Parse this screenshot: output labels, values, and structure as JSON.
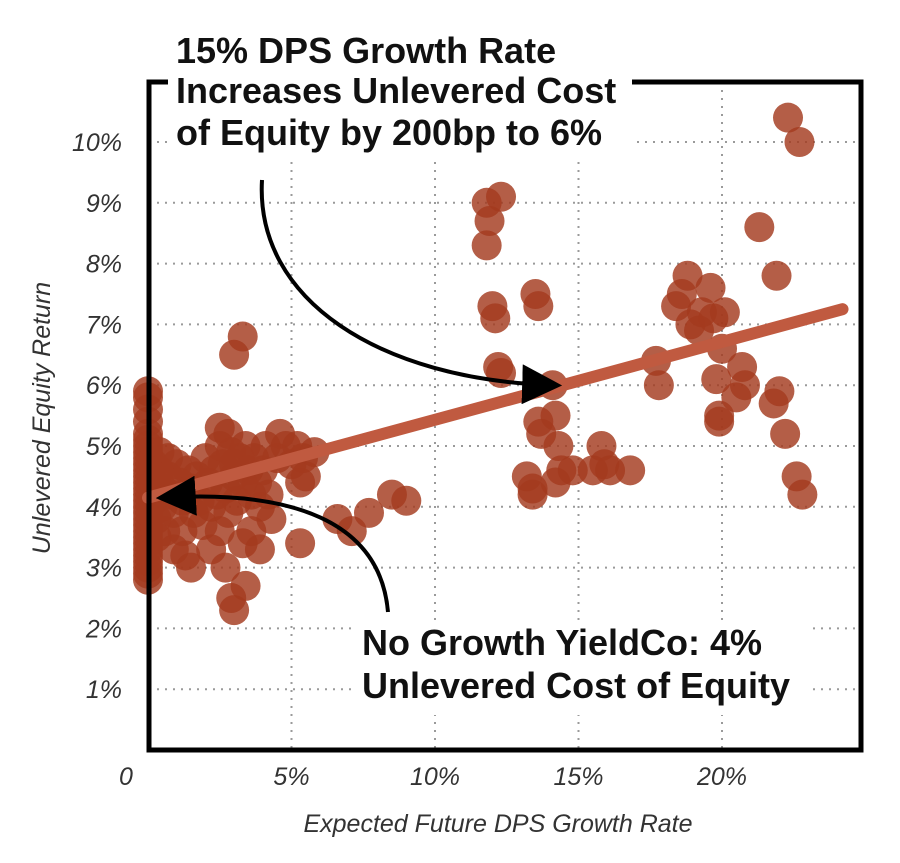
{
  "chart_data": {
    "type": "scatter",
    "title": "",
    "xlabel": "Expected Future DPS Growth Rate",
    "ylabel": "Unlevered Equity Return",
    "xlim": [
      0,
      0.245
    ],
    "ylim": [
      0,
      0.11
    ],
    "grid": true,
    "x_tick_values": [
      0,
      0.05,
      0.1,
      0.15,
      0.2
    ],
    "x_tick_labels": [
      "0",
      "5%",
      "10%",
      "15%",
      "20%"
    ],
    "y_tick_values": [
      0.01,
      0.02,
      0.03,
      0.04,
      0.05,
      0.06,
      0.07,
      0.08,
      0.09,
      0.1
    ],
    "y_tick_labels": [
      "1%",
      "2%",
      "3%",
      "4%",
      "5%",
      "6%",
      "7%",
      "8%",
      "9%",
      "10%"
    ],
    "point_color": "#a33a1f",
    "line_color": "#c05a40",
    "points": [
      [
        0,
        0.059
      ],
      [
        0,
        0.058
      ],
      [
        0,
        0.056
      ],
      [
        0,
        0.054
      ],
      [
        0,
        0.052
      ],
      [
        0,
        0.051
      ],
      [
        0,
        0.05
      ],
      [
        0,
        0.049
      ],
      [
        0,
        0.048
      ],
      [
        0,
        0.047
      ],
      [
        0,
        0.046
      ],
      [
        0,
        0.045
      ],
      [
        0,
        0.044
      ],
      [
        0,
        0.043
      ],
      [
        0,
        0.042
      ],
      [
        0,
        0.041
      ],
      [
        0,
        0.04
      ],
      [
        0,
        0.039
      ],
      [
        0,
        0.038
      ],
      [
        0,
        0.037
      ],
      [
        0,
        0.036
      ],
      [
        0,
        0.035
      ],
      [
        0,
        0.034
      ],
      [
        0,
        0.033
      ],
      [
        0,
        0.032
      ],
      [
        0,
        0.031
      ],
      [
        0,
        0.03
      ],
      [
        0,
        0.029
      ],
      [
        0,
        0.028
      ],
      [
        0.002,
        0.047
      ],
      [
        0.002,
        0.044
      ],
      [
        0.002,
        0.041
      ],
      [
        0.003,
        0.038
      ],
      [
        0.003,
        0.035
      ],
      [
        0.004,
        0.049
      ],
      [
        0.004,
        0.046
      ],
      [
        0.005,
        0.043
      ],
      [
        0.005,
        0.04
      ],
      [
        0.006,
        0.036
      ],
      [
        0.007,
        0.048
      ],
      [
        0.007,
        0.045
      ],
      [
        0.008,
        0.042
      ],
      [
        0.009,
        0.039
      ],
      [
        0.009,
        0.033
      ],
      [
        0.01,
        0.047
      ],
      [
        0.011,
        0.044
      ],
      [
        0.012,
        0.041
      ],
      [
        0.012,
        0.036
      ],
      [
        0.013,
        0.032
      ],
      [
        0.014,
        0.046
      ],
      [
        0.015,
        0.043
      ],
      [
        0.015,
        0.03
      ],
      [
        0.016,
        0.039
      ],
      [
        0.017,
        0.045
      ],
      [
        0.018,
        0.041
      ],
      [
        0.019,
        0.037
      ],
      [
        0.02,
        0.048
      ],
      [
        0.021,
        0.044
      ],
      [
        0.022,
        0.04
      ],
      [
        0.022,
        0.033
      ],
      [
        0.023,
        0.046
      ],
      [
        0.024,
        0.042
      ],
      [
        0.025,
        0.05
      ],
      [
        0.025,
        0.036
      ],
      [
        0.026,
        0.047
      ],
      [
        0.027,
        0.043
      ],
      [
        0.027,
        0.03
      ],
      [
        0.028,
        0.052
      ],
      [
        0.028,
        0.039
      ],
      [
        0.029,
        0.049
      ],
      [
        0.029,
        0.025
      ],
      [
        0.03,
        0.045
      ],
      [
        0.03,
        0.023
      ],
      [
        0.031,
        0.041
      ],
      [
        0.032,
        0.048
      ],
      [
        0.033,
        0.044
      ],
      [
        0.033,
        0.034
      ],
      [
        0.034,
        0.05
      ],
      [
        0.034,
        0.027
      ],
      [
        0.035,
        0.046
      ],
      [
        0.036,
        0.042
      ],
      [
        0.036,
        0.036
      ],
      [
        0.037,
        0.048
      ],
      [
        0.038,
        0.044
      ],
      [
        0.039,
        0.04
      ],
      [
        0.039,
        0.033
      ],
      [
        0.04,
        0.046
      ],
      [
        0.041,
        0.05
      ],
      [
        0.042,
        0.042
      ],
      [
        0.043,
        0.038
      ],
      [
        0.045,
        0.048
      ],
      [
        0.046,
        0.052
      ],
      [
        0.048,
        0.05
      ],
      [
        0.05,
        0.047
      ],
      [
        0.052,
        0.05
      ],
      [
        0.053,
        0.044
      ],
      [
        0.054,
        0.048
      ],
      [
        0.055,
        0.045
      ],
      [
        0.058,
        0.049
      ],
      [
        0.053,
        0.034
      ],
      [
        0.03,
        0.065
      ],
      [
        0.033,
        0.068
      ],
      [
        0.025,
        0.053
      ],
      [
        0.03,
        0.047
      ],
      [
        0.066,
        0.038
      ],
      [
        0.071,
        0.036
      ],
      [
        0.077,
        0.039
      ],
      [
        0.085,
        0.042
      ],
      [
        0.09,
        0.041
      ],
      [
        0.118,
        0.09
      ],
      [
        0.119,
        0.087
      ],
      [
        0.118,
        0.083
      ],
      [
        0.123,
        0.091
      ],
      [
        0.12,
        0.073
      ],
      [
        0.121,
        0.071
      ],
      [
        0.122,
        0.063
      ],
      [
        0.123,
        0.062
      ],
      [
        0.132,
        0.045
      ],
      [
        0.134,
        0.043
      ],
      [
        0.134,
        0.042
      ],
      [
        0.135,
        0.075
      ],
      [
        0.136,
        0.073
      ],
      [
        0.136,
        0.054
      ],
      [
        0.137,
        0.052
      ],
      [
        0.141,
        0.06
      ],
      [
        0.142,
        0.055
      ],
      [
        0.143,
        0.05
      ],
      [
        0.144,
        0.046
      ],
      [
        0.142,
        0.044
      ],
      [
        0.148,
        0.046
      ],
      [
        0.155,
        0.046
      ],
      [
        0.158,
        0.05
      ],
      [
        0.159,
        0.047
      ],
      [
        0.161,
        0.046
      ],
      [
        0.168,
        0.046
      ],
      [
        0.177,
        0.064
      ],
      [
        0.178,
        0.06
      ],
      [
        0.184,
        0.073
      ],
      [
        0.186,
        0.075
      ],
      [
        0.188,
        0.078
      ],
      [
        0.189,
        0.07
      ],
      [
        0.192,
        0.069
      ],
      [
        0.193,
        0.072
      ],
      [
        0.196,
        0.076
      ],
      [
        0.197,
        0.071
      ],
      [
        0.198,
        0.061
      ],
      [
        0.199,
        0.055
      ],
      [
        0.199,
        0.054
      ],
      [
        0.2,
        0.066
      ],
      [
        0.201,
        0.072
      ],
      [
        0.205,
        0.058
      ],
      [
        0.207,
        0.063
      ],
      [
        0.208,
        0.06
      ],
      [
        0.213,
        0.086
      ],
      [
        0.218,
        0.057
      ],
      [
        0.219,
        0.078
      ],
      [
        0.22,
        0.059
      ],
      [
        0.222,
        0.052
      ],
      [
        0.226,
        0.045
      ],
      [
        0.228,
        0.042
      ],
      [
        0.223,
        0.104
      ],
      [
        0.227,
        0.1
      ]
    ],
    "trend_line": {
      "x": [
        0,
        0.242
      ],
      "y": [
        0.0415,
        0.0725
      ]
    },
    "annotations": [
      {
        "lines": [
          "15% DPS Growth Rate",
          "Increases Unlevered Cost",
          "of Equity by 200bp to 6%"
        ],
        "target": [
          0.145,
          0.06
        ]
      },
      {
        "lines": [
          "No Growth YieldCo: 4%",
          "Unlevered Cost of Equity"
        ],
        "target": [
          0.002,
          0.0415
        ]
      }
    ]
  }
}
